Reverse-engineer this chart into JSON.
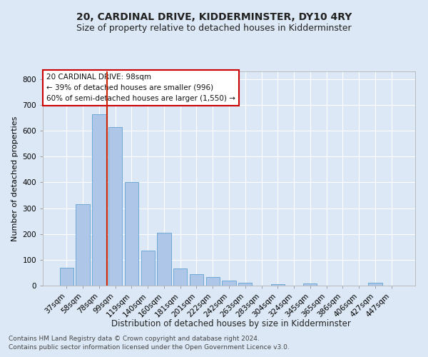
{
  "title": "20, CARDINAL DRIVE, KIDDERMINSTER, DY10 4RY",
  "subtitle": "Size of property relative to detached houses in Kidderminster",
  "xlabel": "Distribution of detached houses by size in Kidderminster",
  "ylabel": "Number of detached properties",
  "categories": [
    "37sqm",
    "58sqm",
    "78sqm",
    "99sqm",
    "119sqm",
    "140sqm",
    "160sqm",
    "181sqm",
    "201sqm",
    "222sqm",
    "242sqm",
    "263sqm",
    "283sqm",
    "304sqm",
    "324sqm",
    "345sqm",
    "365sqm",
    "386sqm",
    "406sqm",
    "427sqm",
    "447sqm"
  ],
  "values": [
    70,
    315,
    665,
    615,
    400,
    135,
    205,
    67,
    43,
    33,
    18,
    11,
    0,
    6,
    0,
    9,
    0,
    0,
    0,
    10,
    0
  ],
  "bar_color": "#aec6e8",
  "bar_edge_color": "#6fa8d6",
  "property_line_x": 2.5,
  "annotation_line1": "20 CARDINAL DRIVE: 98sqm",
  "annotation_line2": "← 39% of detached houses are smaller (996)",
  "annotation_line3": "60% of semi-detached houses are larger (1,550) →",
  "annotation_box_facecolor": "#ffffff",
  "annotation_box_edgecolor": "#cc0000",
  "ylim": [
    0,
    830
  ],
  "yticks": [
    0,
    100,
    200,
    300,
    400,
    500,
    600,
    700,
    800
  ],
  "footnote1": "Contains HM Land Registry data © Crown copyright and database right 2024.",
  "footnote2": "Contains public sector information licensed under the Open Government Licence v3.0.",
  "background_color": "#dce8f5",
  "plot_background": "#dce8f5",
  "grid_color": "#ffffff",
  "title_fontsize": 10,
  "subtitle_fontsize": 9,
  "xlabel_fontsize": 8.5,
  "ylabel_fontsize": 8,
  "tick_fontsize": 7.5,
  "annotation_fontsize": 7.5,
  "footnote_fontsize": 6.5,
  "red_line_color": "#cc2200"
}
